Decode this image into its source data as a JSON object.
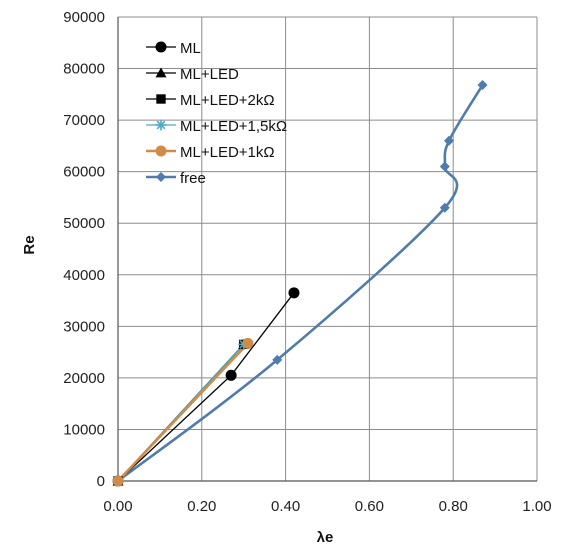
{
  "chart_data": {
    "type": "scatter",
    "title": "",
    "xlabel": "λe",
    "ylabel": "Re",
    "xlim": [
      0,
      1
    ],
    "ylim": [
      0,
      90000
    ],
    "grid": true,
    "legend_position": "top-left",
    "x_tick_labels": [
      "0.00",
      "0.20",
      "0.40",
      "0.60",
      "0.80",
      "1.00"
    ],
    "y_tick_labels": [
      "0",
      "10000",
      "20000",
      "30000",
      "40000",
      "50000",
      "60000",
      "70000",
      "80000",
      "90000"
    ],
    "series": [
      {
        "name": "ML",
        "color": "#000000",
        "marker": "circle",
        "smooth": false,
        "x": [
          0.0,
          0.27,
          0.42
        ],
        "y": [
          0,
          20500,
          36500
        ]
      },
      {
        "name": "ML+LED",
        "color": "#000000",
        "marker": "triangle",
        "smooth": false,
        "x": [
          0.0,
          0.3
        ],
        "y": [
          0,
          26500
        ]
      },
      {
        "name": "ML+LED+2kΩ",
        "color": "#000000",
        "marker": "square",
        "smooth": false,
        "x": [
          0.0,
          0.3
        ],
        "y": [
          0,
          26500
        ]
      },
      {
        "name": "ML+LED+1,5kΩ",
        "color": "#4bacc6",
        "marker": "asterisk",
        "smooth": false,
        "x": [
          0.0,
          0.3
        ],
        "y": [
          0,
          26500
        ]
      },
      {
        "name": "ML+LED+1kΩ",
        "color": "#d08b48",
        "marker": "circle",
        "smooth": false,
        "x": [
          0.0,
          0.31
        ],
        "y": [
          0,
          26700
        ]
      },
      {
        "name": "free",
        "color": "#4f7cac",
        "marker": "diamond",
        "smooth": true,
        "x": [
          0.0,
          0.38,
          0.78,
          0.78,
          0.79,
          0.87
        ],
        "y": [
          0,
          23500,
          53000,
          61000,
          66000,
          76800
        ]
      }
    ]
  }
}
